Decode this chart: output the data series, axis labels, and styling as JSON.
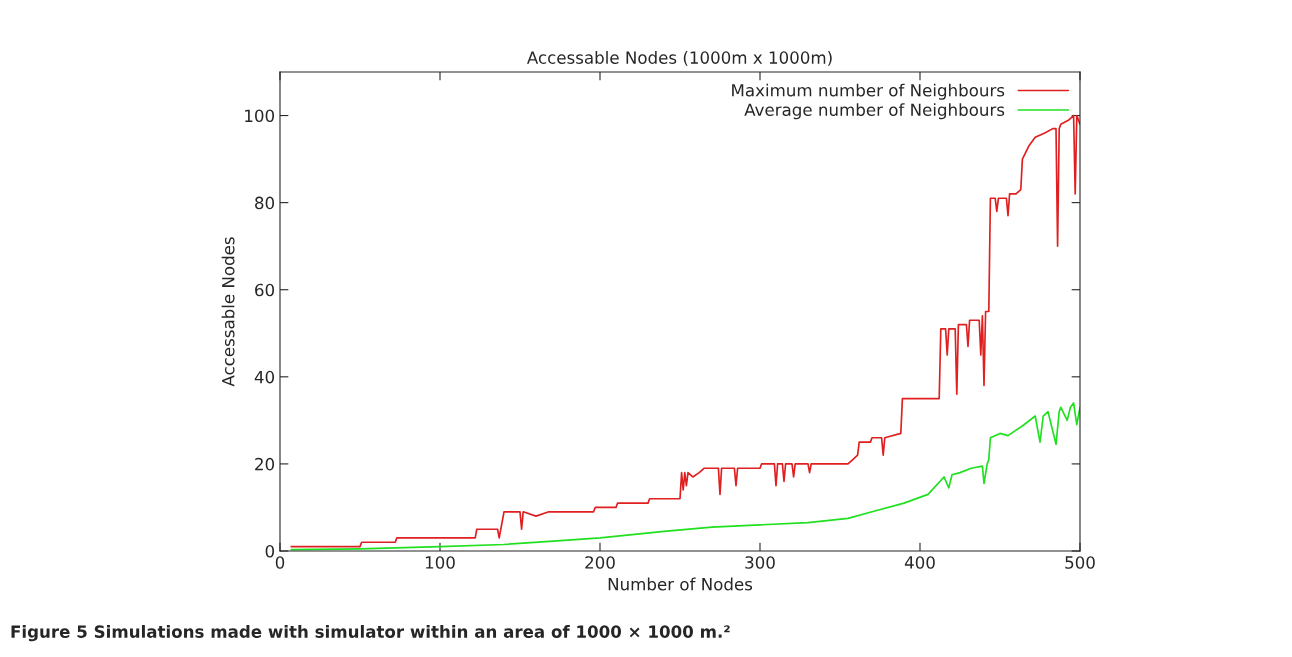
{
  "chart_data": {
    "type": "line",
    "title": "Accessable Nodes (1000m x 1000m)",
    "xlabel": "Number of Nodes",
    "ylabel": "Accessable Nodes",
    "xlim": [
      0,
      500
    ],
    "xticks": [
      0,
      100,
      200,
      300,
      400,
      500
    ],
    "ylim": [
      0,
      110
    ],
    "yticks": [
      0,
      20,
      40,
      60,
      80,
      100
    ],
    "grid": false,
    "legend": "top right",
    "series": [
      {
        "name": "Maximum number of Neighbours",
        "color": "#e02020",
        "x": [
          7,
          50,
          51,
          72,
          73,
          122,
          123,
          136,
          137,
          138,
          140,
          150,
          151,
          152,
          160,
          168,
          196,
          197,
          210,
          211,
          230,
          231,
          250,
          251,
          252,
          253,
          254,
          255,
          258,
          262,
          265,
          274,
          275,
          276,
          284,
          285,
          286,
          290,
          300,
          301,
          309,
          310,
          311,
          314,
          315,
          316,
          320,
          321,
          322,
          330,
          331,
          332,
          355,
          358,
          361,
          362,
          369,
          370,
          376,
          377,
          378,
          388,
          389,
          392,
          412,
          413,
          414,
          416,
          417,
          418,
          422,
          423,
          424,
          425,
          429,
          430,
          431,
          432,
          437,
          438,
          439,
          440,
          441,
          443,
          444,
          447,
          448,
          449,
          454,
          455,
          456,
          460,
          463,
          464,
          468,
          472,
          478,
          483,
          485,
          486,
          487,
          488,
          493,
          496,
          497,
          498,
          500
        ],
        "values": [
          1,
          1,
          2,
          2,
          3,
          3,
          5,
          5,
          3,
          5,
          9,
          9,
          5,
          9,
          8,
          9,
          9,
          10,
          10,
          11,
          11,
          12,
          12,
          18,
          14,
          18,
          15,
          18,
          17,
          18,
          19,
          19,
          13,
          19,
          19,
          15,
          19,
          19,
          19,
          20,
          20,
          15,
          20,
          20,
          16,
          20,
          20,
          17,
          20,
          20,
          18,
          20,
          20,
          21,
          22,
          25,
          25,
          26,
          26,
          22,
          26,
          27,
          35,
          35,
          35,
          51,
          51,
          51,
          45,
          51,
          51,
          36,
          52,
          52,
          52,
          47,
          53,
          53,
          53,
          45,
          54,
          38,
          55,
          55,
          81,
          81,
          78,
          81,
          81,
          77,
          82,
          82,
          83,
          90,
          93,
          95,
          96,
          97,
          97,
          70,
          97,
          98,
          99,
          100,
          82,
          100,
          98
        ]
      },
      {
        "name": "Average number of Neighbours",
        "color": "#20e020",
        "x": [
          7,
          50,
          100,
          140,
          180,
          200,
          240,
          270,
          300,
          330,
          355,
          370,
          390,
          405,
          415,
          418,
          420,
          425,
          432,
          439,
          440,
          442,
          443,
          444,
          450,
          455,
          465,
          472,
          475,
          477,
          480,
          485,
          487,
          488,
          492,
          494,
          496,
          498,
          500
        ],
        "values": [
          0.3,
          0.5,
          1,
          1.5,
          2.5,
          3,
          4.5,
          5.5,
          6,
          6.5,
          7.5,
          9,
          11,
          13,
          17,
          14.5,
          17.5,
          18,
          19,
          19.5,
          15.5,
          20,
          21,
          26,
          27,
          26.5,
          29,
          31,
          25,
          31,
          32,
          24.5,
          32,
          33,
          30,
          33,
          34,
          29,
          33
        ]
      }
    ],
    "annotations": [
      "Figure 5 Simulations made with simulator within an area of 1000 × 1000 m.²"
    ]
  }
}
